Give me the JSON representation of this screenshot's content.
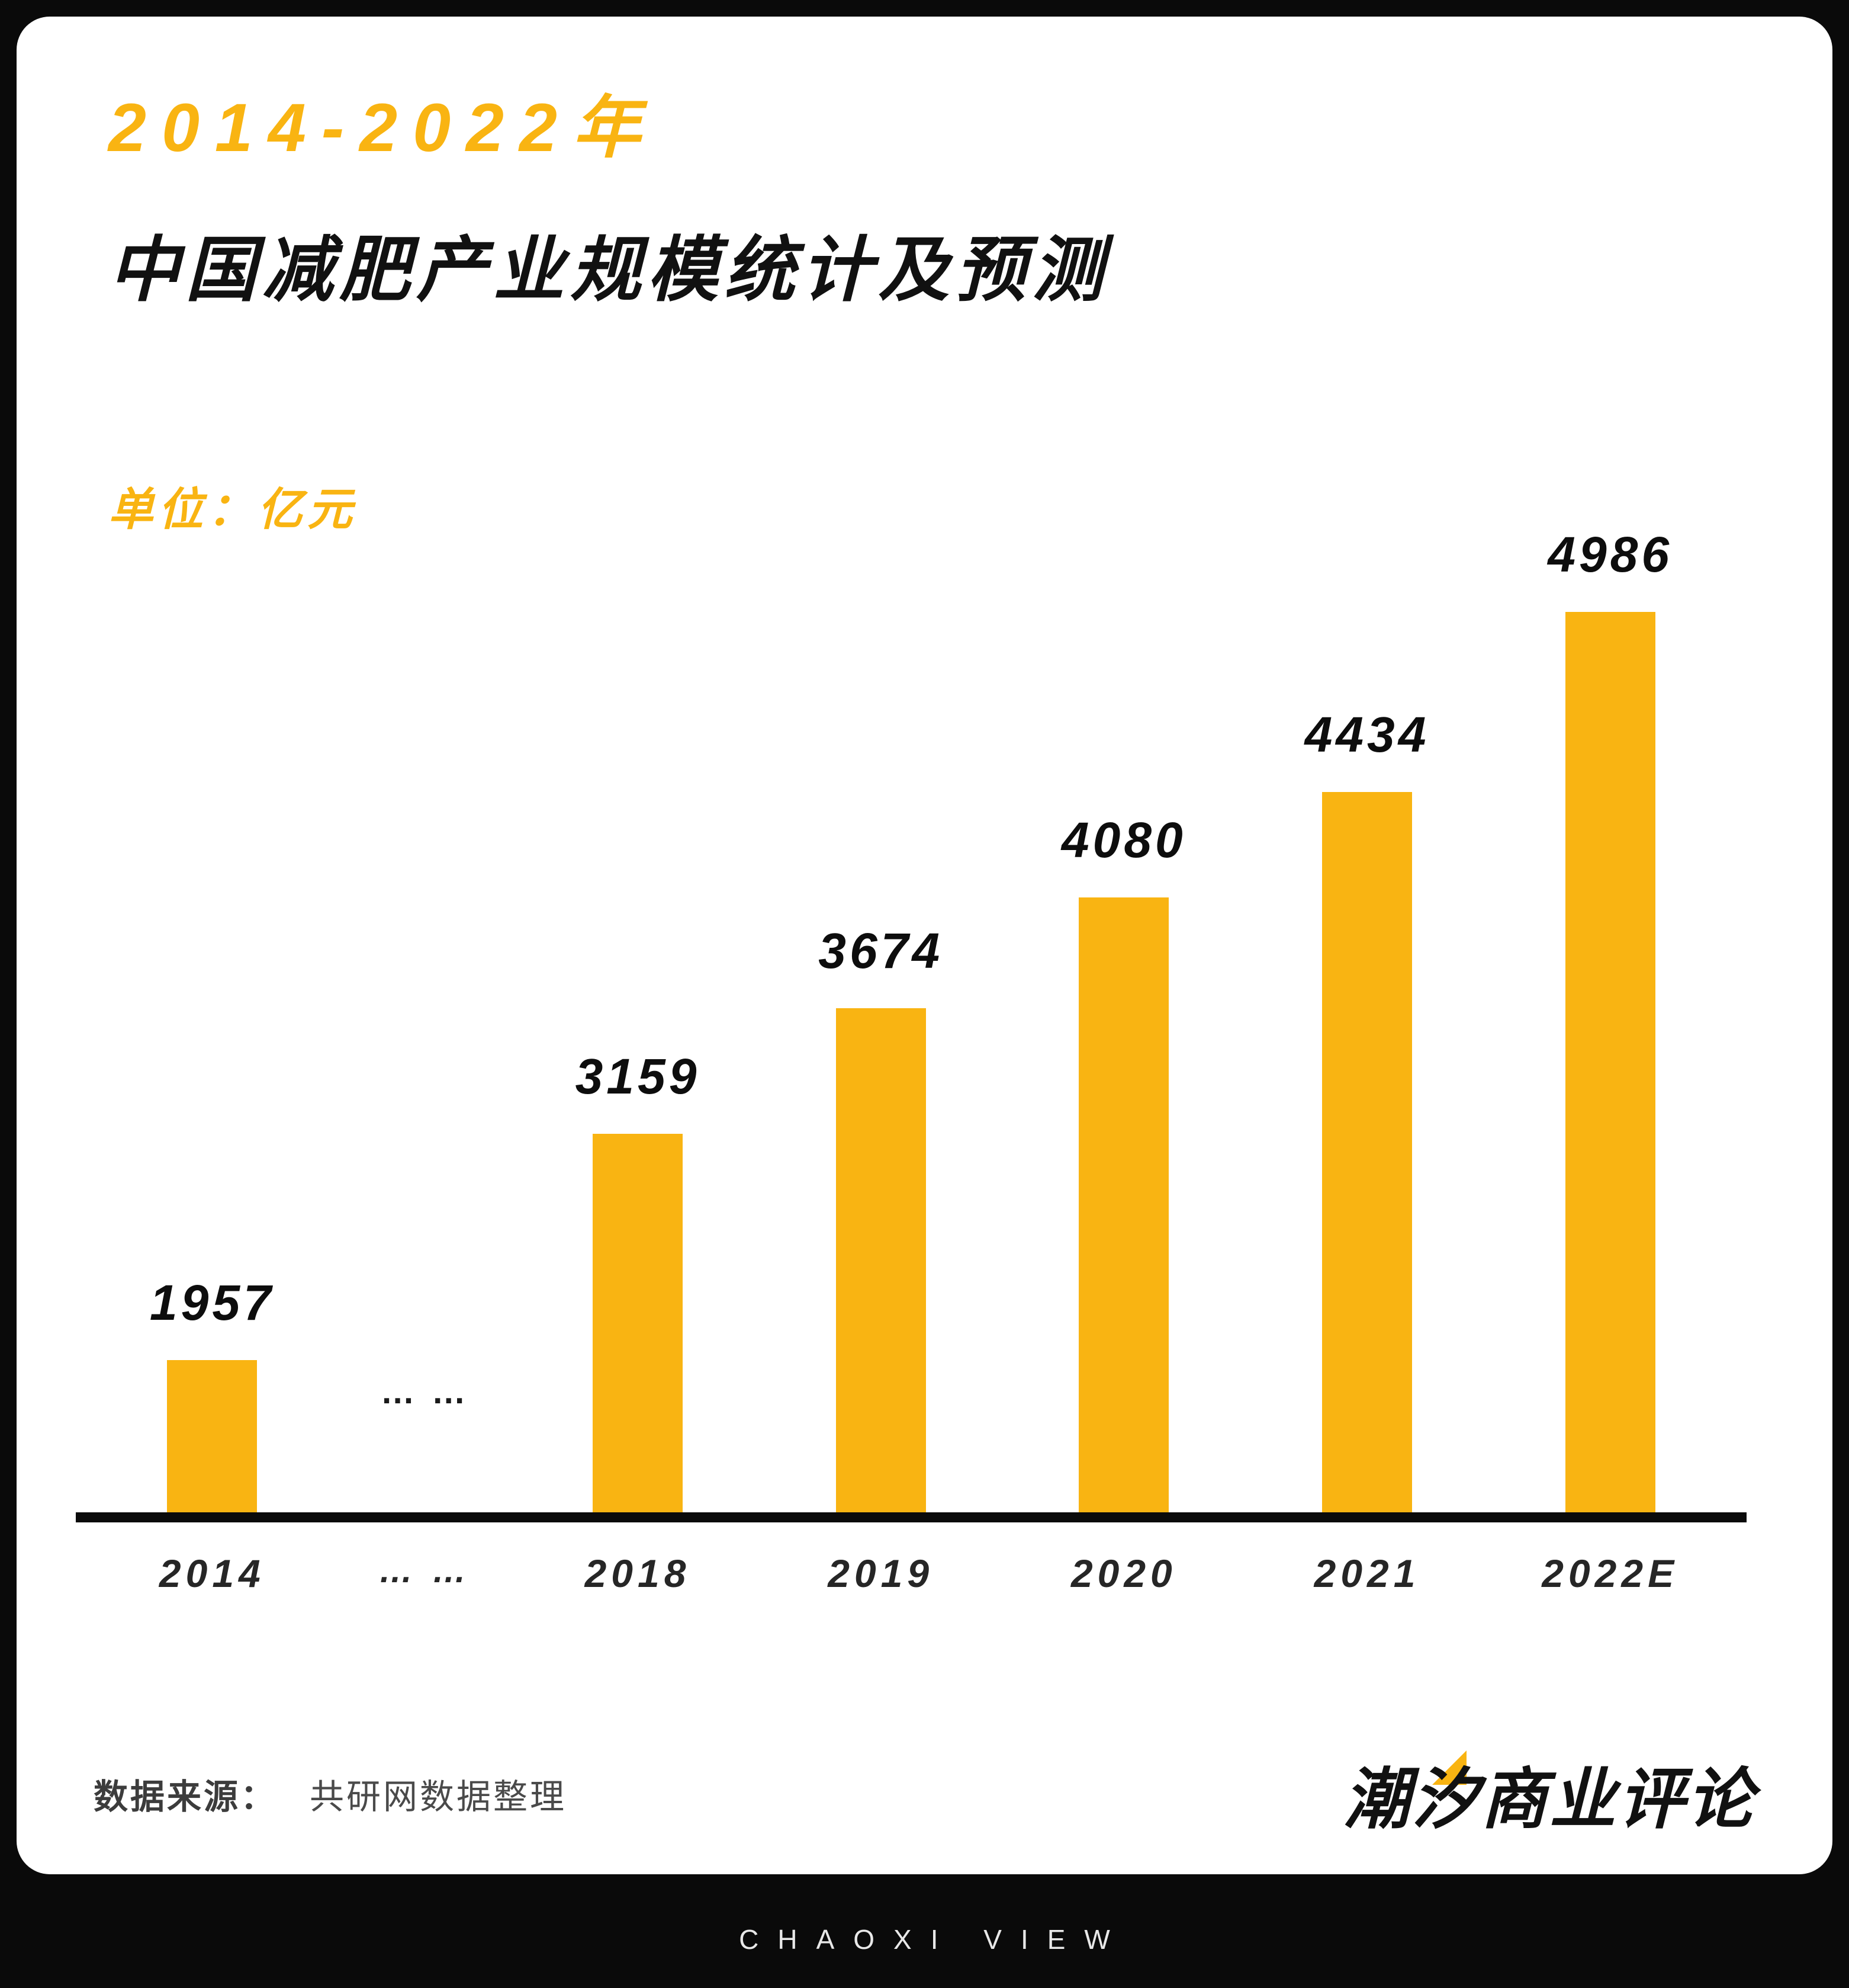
{
  "header": {
    "title_range": "2014-2022年",
    "title_main": "中国减肥产业规模统计及预测",
    "unit_label": "单位：亿元"
  },
  "chart_data": {
    "type": "bar",
    "title": "2014-2022年中国减肥产业规模统计及预测",
    "ylabel": "亿元",
    "categories": [
      "2014",
      "… …",
      "2018",
      "2019",
      "2020",
      "2021",
      "2022E"
    ],
    "values": [
      1957,
      null,
      3159,
      3674,
      4080,
      4434,
      4986
    ],
    "gap_label": "… …",
    "value_labels_shown": true,
    "grid": false,
    "legend": "none",
    "ylim": [
      0,
      5200
    ],
    "bar_color": "#F9B412"
  },
  "footer": {
    "source_label": "数据来源：",
    "source_value": "共研网数据整理",
    "logo_text": "潮汐商业评论"
  },
  "bottom_bar": {
    "text": "CHAOXI VIEW"
  },
  "colors": {
    "accent": "#F9B412",
    "background": "#0A0A0A",
    "card": "#FFFFFF",
    "text": "#111111"
  }
}
